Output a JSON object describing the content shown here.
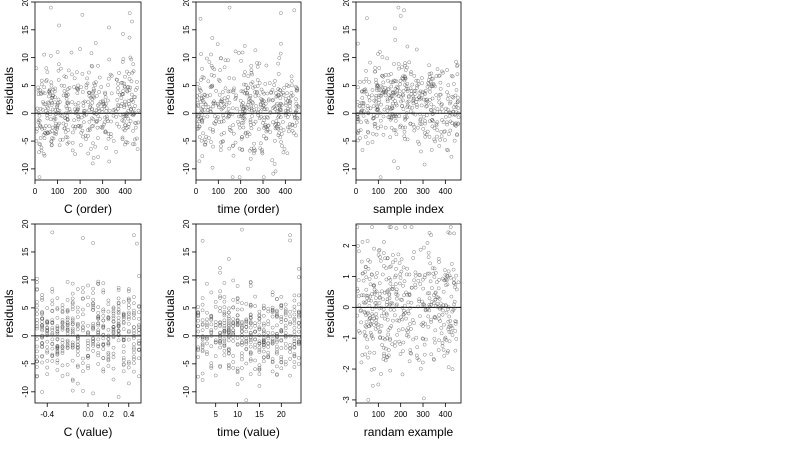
{
  "chart_data": [
    {
      "type": "scatter",
      "id": "c-order",
      "xlabel": "C (order)",
      "ylabel": "residuals",
      "xlim": [
        0,
        470
      ],
      "ylim": [
        -12,
        20
      ],
      "xticks": [
        0,
        100,
        200,
        300,
        400
      ],
      "xtick_labels": [
        "0",
        "100",
        "200",
        "300",
        "400"
      ],
      "yticks": [
        -10,
        -5,
        0,
        5,
        10,
        15,
        20
      ],
      "ytick_labels": [
        "-10",
        "-5",
        "0",
        "5",
        "10",
        "15",
        "20"
      ],
      "hline": 0,
      "n_points": 460,
      "x_mode": "index",
      "y_dist": "skew",
      "seed": 11,
      "points": [
        [
          20,
          -11.5
        ],
        [
          18,
          -7
        ],
        [
          70,
          19
        ],
        [
          210,
          17.7
        ],
        [
          420,
          18
        ],
        [
          430,
          16.5
        ],
        [
          250,
          10.8
        ],
        [
          100,
          11
        ]
      ]
    },
    {
      "type": "scatter",
      "id": "time-order",
      "xlabel": "time (order)",
      "ylabel": "residuals",
      "xlim": [
        0,
        470
      ],
      "ylim": [
        -12,
        20
      ],
      "xticks": [
        0,
        100,
        200,
        300,
        400
      ],
      "xtick_labels": [
        "0",
        "100",
        "200",
        "300",
        "400"
      ],
      "yticks": [
        -10,
        -5,
        0,
        5,
        10,
        15,
        20
      ],
      "ytick_labels": [
        "-10",
        "-5",
        "0",
        "5",
        "10",
        "15",
        "20"
      ],
      "hline": 0,
      "n_points": 460,
      "x_mode": "index",
      "y_dist": "skew",
      "seed": 23,
      "points": [
        [
          20,
          17
        ],
        [
          150,
          19
        ],
        [
          195,
          -11.5
        ],
        [
          380,
          18
        ],
        [
          440,
          18.5
        ],
        [
          380,
          12.5
        ]
      ]
    },
    {
      "type": "scatter",
      "id": "sample-index",
      "xlabel": "sample index",
      "ylabel": "residuals",
      "xlim": [
        0,
        470
      ],
      "ylim": [
        -12,
        20
      ],
      "xticks": [
        0,
        100,
        200,
        300,
        400
      ],
      "xtick_labels": [
        "0",
        "100",
        "200",
        "300",
        "400"
      ],
      "yticks": [
        -10,
        -5,
        0,
        5,
        10,
        15,
        20
      ],
      "ytick_labels": [
        "-10",
        "-5",
        "0",
        "5",
        "10",
        "15",
        "20"
      ],
      "hline": 0,
      "n_points": 460,
      "x_mode": "index",
      "y_dist": "skew_trend",
      "seed": 37,
      "points": [
        [
          190,
          19
        ],
        [
          215,
          18.5
        ],
        [
          200,
          17.5
        ],
        [
          110,
          -11.5
        ],
        [
          230,
          12
        ]
      ]
    },
    {
      "type": "scatter",
      "id": "c-value",
      "xlabel": "C (value)",
      "ylabel": "residuals",
      "xlim": [
        -0.52,
        0.52
      ],
      "ylim": [
        -12,
        20
      ],
      "xticks": [
        -0.4,
        0.0,
        0.2,
        0.4
      ],
      "xtick_labels": [
        "-0.4",
        "0.0",
        "0.2",
        "0.4"
      ],
      "yticks": [
        -10,
        -5,
        0,
        5,
        10,
        15,
        20
      ],
      "ytick_labels": [
        "-10",
        "-5",
        "0",
        "5",
        "10",
        "15",
        "20"
      ],
      "hline": 0,
      "n_points": 460,
      "x_mode": "levels",
      "levels": [
        -0.5,
        -0.45,
        -0.4,
        -0.35,
        -0.3,
        -0.25,
        -0.2,
        -0.15,
        -0.1,
        -0.05,
        0.0,
        0.05,
        0.1,
        0.15,
        0.2,
        0.25,
        0.3,
        0.35,
        0.4,
        0.45,
        0.5
      ],
      "y_dist": "skew",
      "seed": 53,
      "points": [
        [
          -0.35,
          18.5
        ],
        [
          -0.05,
          17.5
        ],
        [
          0.45,
          18
        ],
        [
          0.48,
          16.5
        ],
        [
          -0.52,
          -11.5
        ]
      ]
    },
    {
      "type": "scatter",
      "id": "time-value",
      "xlabel": "time (value)",
      "ylabel": "residuals",
      "xlim": [
        0.5,
        24.5
      ],
      "ylim": [
        -12,
        20
      ],
      "xticks": [
        5,
        10,
        15,
        20
      ],
      "xtick_labels": [
        "5",
        "10",
        "15",
        "20"
      ],
      "yticks": [
        -10,
        -5,
        0,
        5,
        10,
        15,
        20
      ],
      "ytick_labels": [
        "-10",
        "-5",
        "0",
        "5",
        "10",
        "15",
        "20"
      ],
      "hline": 0,
      "n_points": 460,
      "x_mode": "levels",
      "levels": [
        1,
        2,
        3,
        4,
        5,
        6,
        7,
        8,
        9,
        10,
        11,
        12,
        13,
        14,
        15,
        16,
        17,
        18,
        19,
        20,
        21,
        22,
        23,
        24
      ],
      "y_dist": "skew",
      "seed": 71,
      "points": [
        [
          2,
          17
        ],
        [
          11,
          19
        ],
        [
          22,
          18
        ],
        [
          12,
          -11.5
        ],
        [
          24,
          12
        ]
      ]
    },
    {
      "type": "scatter",
      "id": "random-example",
      "xlabel": "randam example",
      "ylabel": "residuals",
      "xlim": [
        0,
        470
      ],
      "ylim": [
        -3.1,
        2.7
      ],
      "xticks": [
        0,
        100,
        200,
        300,
        400
      ],
      "xtick_labels": [
        "0",
        "100",
        "200",
        "300",
        "400"
      ],
      "yticks": [
        -3,
        -2,
        -1,
        0,
        1,
        2
      ],
      "ytick_labels": [
        "-3",
        "-2",
        "-1",
        "0",
        "1",
        "2"
      ],
      "hline": 0,
      "n_points": 460,
      "x_mode": "index",
      "y_dist": "normal",
      "seed": 97,
      "points": [
        [
          220,
          2.6
        ],
        [
          55,
          -3.0
        ],
        [
          420,
          2.4
        ],
        [
          100,
          -2.5
        ]
      ]
    }
  ]
}
